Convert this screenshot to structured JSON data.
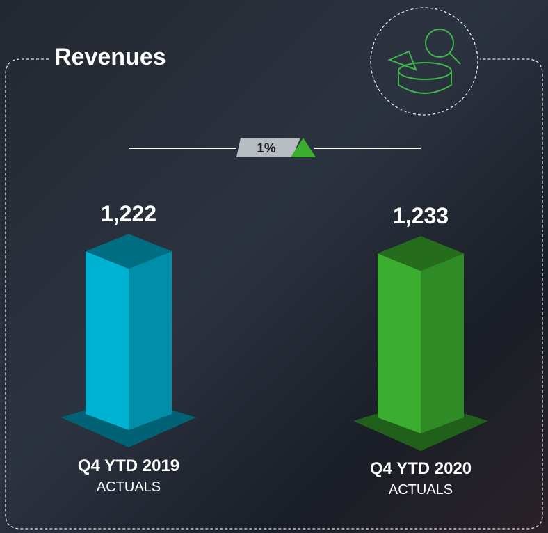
{
  "chart_data": {
    "type": "bar",
    "title": "Revenues",
    "change_label": "1%",
    "categories": [
      "Q4 YTD 2019",
      "Q4 YTD 2020"
    ],
    "sublabels": [
      "ACTUALS",
      "ACTUALS"
    ],
    "values": [
      1222,
      1233
    ],
    "value_labels": [
      "1,222",
      "1,233"
    ],
    "colors": [
      "#00b2d2",
      "#3bae2f"
    ]
  }
}
